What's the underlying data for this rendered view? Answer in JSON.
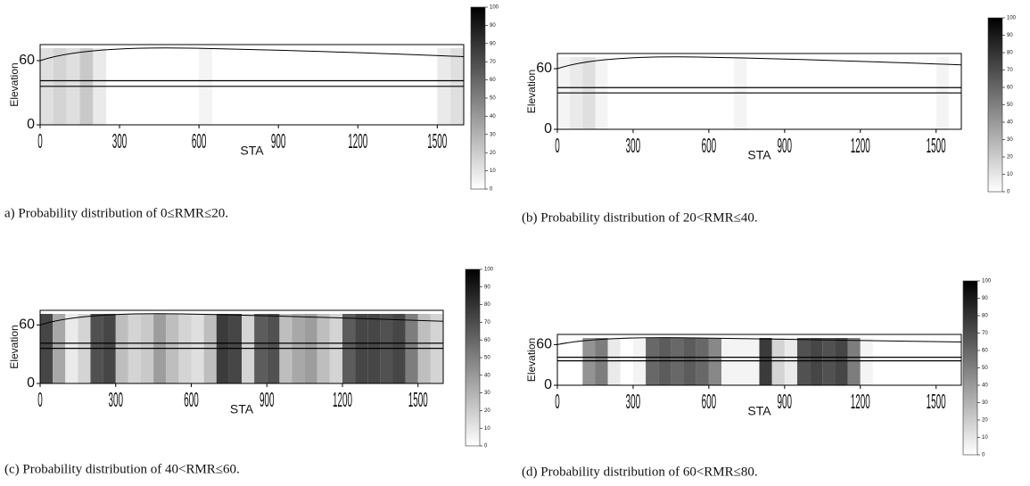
{
  "chart_data": [
    {
      "type": "heatmap",
      "caption": "a) Probability distribution of 0≤RMR≤20.",
      "x_label": "STA",
      "y_label": "Elevation",
      "xlim": [
        0,
        1600
      ],
      "xticks": [
        0,
        300,
        600,
        900,
        1200,
        1500
      ],
      "ylim": [
        0,
        75
      ],
      "yticks": [
        0,
        60
      ],
      "x": [
        0,
        50,
        100,
        150,
        200,
        250,
        300,
        350,
        400,
        450,
        500,
        550,
        600,
        650,
        700,
        750,
        800,
        850,
        900,
        950,
        1000,
        1050,
        1100,
        1150,
        1200,
        1250,
        1300,
        1350,
        1400,
        1450,
        1500,
        1550
      ],
      "values": [
        15,
        20,
        15,
        25,
        10,
        0,
        0,
        0,
        0,
        0,
        0,
        0,
        5,
        0,
        0,
        0,
        0,
        0,
        0,
        0,
        0,
        0,
        0,
        0,
        0,
        0,
        0,
        0,
        0,
        0,
        10,
        15
      ],
      "colorbar_lim": [
        0,
        100
      ],
      "colorbar_ticks": [
        0,
        10,
        20,
        30,
        40,
        50,
        60,
        70,
        80,
        90,
        100
      ]
    },
    {
      "type": "heatmap",
      "caption": "(b) Probability distribution of 20<RMR≤40.",
      "x_label": "STA",
      "y_label": "Elevation",
      "xlim": [
        0,
        1600
      ],
      "xticks": [
        0,
        300,
        600,
        900,
        1200,
        1500
      ],
      "ylim": [
        0,
        75
      ],
      "yticks": [
        0,
        60
      ],
      "x": [
        0,
        50,
        100,
        150,
        200,
        250,
        300,
        350,
        400,
        450,
        500,
        550,
        600,
        650,
        700,
        750,
        800,
        850,
        900,
        950,
        1000,
        1050,
        1100,
        1150,
        1200,
        1250,
        1300,
        1350,
        1400,
        1450,
        1500,
        1550
      ],
      "values": [
        5,
        10,
        15,
        5,
        0,
        0,
        0,
        0,
        0,
        0,
        0,
        0,
        0,
        0,
        5,
        0,
        0,
        0,
        0,
        0,
        0,
        0,
        0,
        0,
        0,
        0,
        0,
        0,
        0,
        0,
        5,
        0
      ],
      "colorbar_lim": [
        0,
        100
      ],
      "colorbar_ticks": [
        0,
        10,
        20,
        30,
        40,
        50,
        60,
        70,
        80,
        90,
        100
      ]
    },
    {
      "type": "heatmap",
      "caption": "(c) Probability distribution of 40<RMR≤60.",
      "x_label": "STA",
      "y_label": "Elevation",
      "xlim": [
        0,
        1600
      ],
      "xticks": [
        0,
        300,
        600,
        900,
        1200,
        1500
      ],
      "ylim": [
        0,
        75
      ],
      "yticks": [
        0,
        60
      ],
      "x": [
        0,
        50,
        100,
        150,
        200,
        250,
        300,
        350,
        400,
        450,
        500,
        550,
        600,
        650,
        700,
        750,
        800,
        850,
        900,
        950,
        1000,
        1050,
        1100,
        1150,
        1200,
        1250,
        1300,
        1350,
        1400,
        1450,
        1500,
        1550
      ],
      "values": [
        85,
        40,
        10,
        20,
        80,
        85,
        30,
        20,
        25,
        45,
        30,
        20,
        15,
        30,
        90,
        85,
        20,
        75,
        80,
        30,
        40,
        45,
        30,
        20,
        75,
        85,
        85,
        80,
        85,
        60,
        30,
        20
      ],
      "colorbar_lim": [
        0,
        100
      ],
      "colorbar_ticks": [
        0,
        10,
        20,
        30,
        40,
        50,
        60,
        70,
        80,
        90,
        100
      ]
    },
    {
      "type": "heatmap",
      "caption": "(d) Probability distribution of 60<RMR≤80.",
      "x_label": "STA",
      "y_label": "Elevation",
      "xlim": [
        0,
        1600
      ],
      "xticks": [
        0,
        300,
        600,
        900,
        1200,
        1500
      ],
      "ylim": [
        0,
        75
      ],
      "yticks": [
        0,
        60
      ],
      "x": [
        0,
        50,
        100,
        150,
        200,
        250,
        300,
        350,
        400,
        450,
        500,
        550,
        600,
        650,
        700,
        750,
        800,
        850,
        900,
        950,
        1000,
        1050,
        1100,
        1150,
        1200,
        1250,
        1300,
        1350,
        1400,
        1450,
        1500,
        1550
      ],
      "values": [
        0,
        0,
        50,
        60,
        10,
        0,
        5,
        70,
        75,
        70,
        75,
        70,
        55,
        5,
        5,
        5,
        90,
        20,
        10,
        80,
        85,
        80,
        85,
        60,
        5,
        0,
        0,
        0,
        0,
        0,
        0,
        0
      ],
      "colorbar_lim": [
        0,
        100
      ],
      "colorbar_ticks": [
        0,
        10,
        20,
        30,
        40,
        50,
        60,
        70,
        80,
        90,
        100
      ]
    }
  ]
}
